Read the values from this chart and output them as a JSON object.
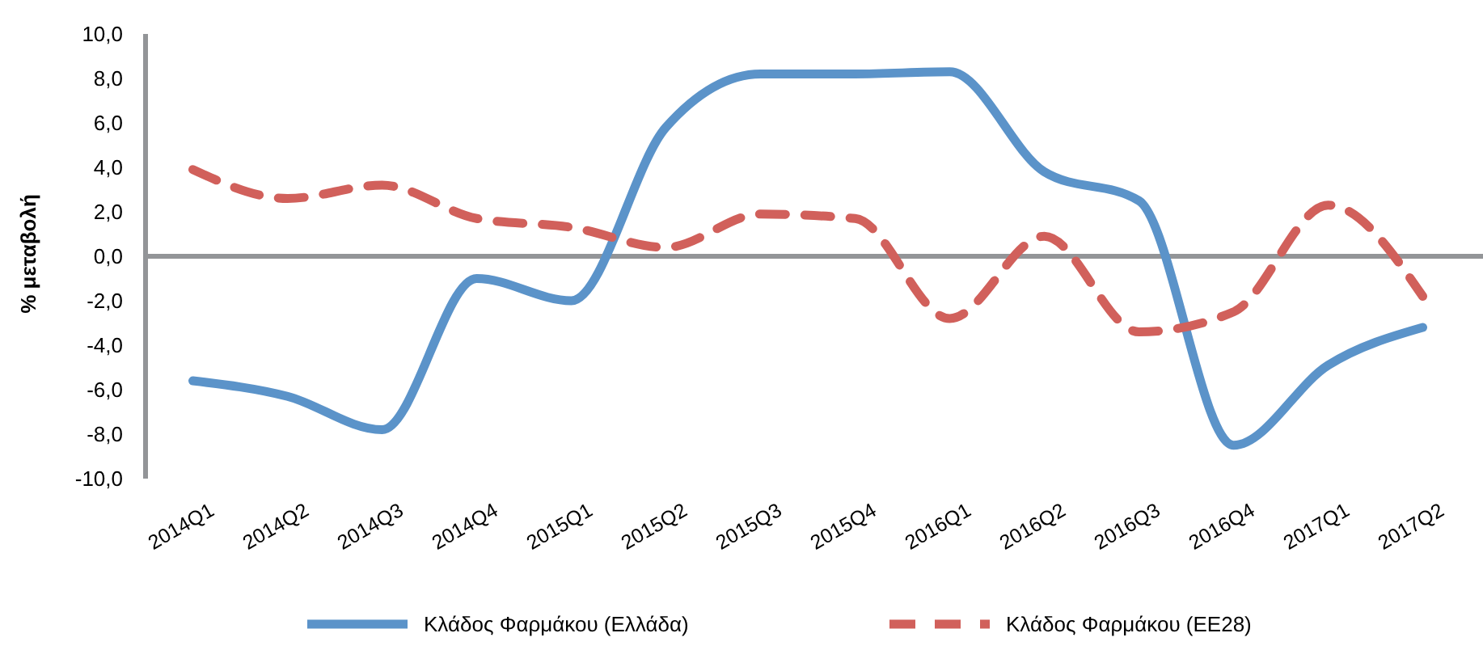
{
  "chart_data": {
    "type": "line",
    "ylabel": "% μεταβολή",
    "categories": [
      "2014Q1",
      "2014Q2",
      "2014Q3",
      "2014Q4",
      "2015Q1",
      "2015Q2",
      "2015Q3",
      "2015Q4",
      "2016Q1",
      "2016Q2",
      "2016Q3",
      "2016Q4",
      "2017Q1",
      "2017Q2"
    ],
    "series": [
      {
        "name": "Κλάδος Φαρμάκου (Ελλάδα)",
        "color": "#5b93c9",
        "line_style": "solid",
        "values": [
          -5.6,
          -6.3,
          -7.8,
          -1.0,
          -2.0,
          5.8,
          8.2,
          8.2,
          8.3,
          3.8,
          2.5,
          -8.5,
          -4.9,
          -3.2
        ]
      },
      {
        "name": "Κλάδος Φαρμάκου (ΕΕ28)",
        "color": "#d1605b",
        "line_style": "dashed",
        "values": [
          3.9,
          2.6,
          3.2,
          1.7,
          1.3,
          0.4,
          1.9,
          1.7,
          -2.8,
          0.9,
          -3.4,
          -2.5,
          2.3,
          -1.8
        ]
      }
    ],
    "ylim": [
      -10,
      10
    ],
    "yticks": [
      {
        "value": -10,
        "label": "-10,0"
      },
      {
        "value": -8,
        "label": "-8,0"
      },
      {
        "value": -6,
        "label": "-6,0"
      },
      {
        "value": -4,
        "label": "-4,0"
      },
      {
        "value": -2,
        "label": "-2,0"
      },
      {
        "value": 0,
        "label": "0,0"
      },
      {
        "value": 2,
        "label": "2,0"
      },
      {
        "value": 4,
        "label": "4,0"
      },
      {
        "value": 6,
        "label": "6,0"
      },
      {
        "value": 8,
        "label": "8,0"
      },
      {
        "value": 10,
        "label": "10,0"
      }
    ],
    "legend": "bottom",
    "marker": "none"
  }
}
